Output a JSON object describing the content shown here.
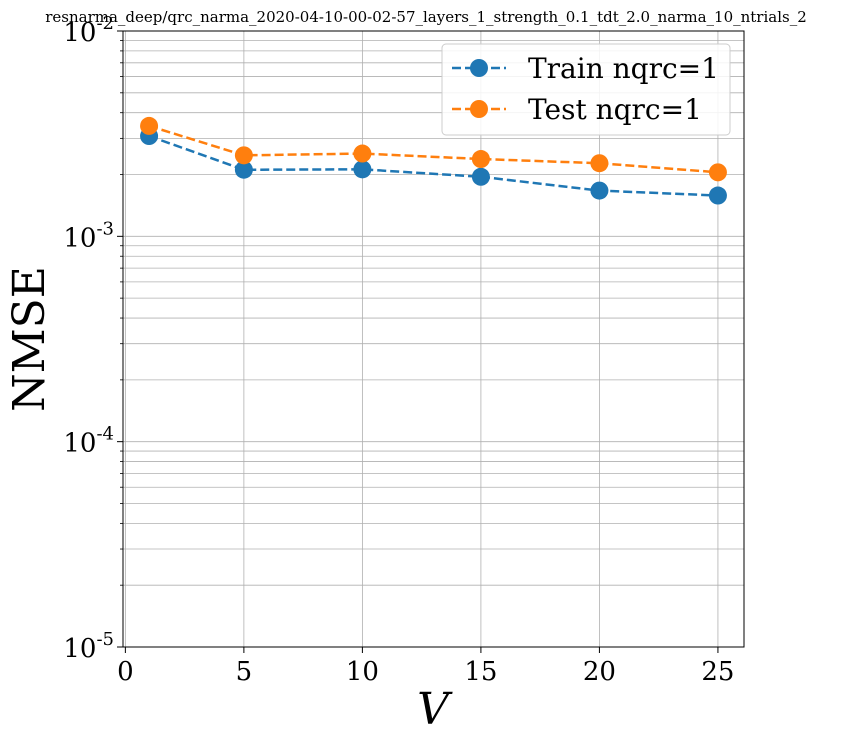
{
  "chart_data": {
    "type": "line",
    "title": "resnarma_deep/qrc_narma_2020-04-10-00-02-57_layers_1_strength_0.1_tdt_2.0_narma_10_ntrials_2",
    "xlabel": "V",
    "ylabel": "NMSE",
    "x": [
      1,
      5,
      10,
      15,
      20,
      25
    ],
    "xlim": [
      -0.1,
      26.1
    ],
    "ylim": [
      1e-05,
      0.01
    ],
    "yscale": "log",
    "xticks": [
      "0",
      "5",
      "10",
      "15",
      "20",
      "25"
    ],
    "yticks": [
      {
        "base": "10",
        "exp": "-5"
      },
      {
        "base": "10",
        "exp": "-4"
      },
      {
        "base": "10",
        "exp": "-3"
      },
      {
        "base": "10",
        "exp": "-2"
      }
    ],
    "grid": true,
    "legend_position": "top-right",
    "series": [
      {
        "name": "Train nqrc=1",
        "color": "#1f77b4",
        "style": "dashed",
        "marker": "circle",
        "values": [
          0.00308,
          0.00211,
          0.00212,
          0.00195,
          0.00167,
          0.00158
        ]
      },
      {
        "name": "Test nqrc=1",
        "color": "#ff7f0e",
        "style": "dashed",
        "marker": "circle",
        "values": [
          0.00345,
          0.00248,
          0.00253,
          0.00238,
          0.00227,
          0.00205
        ]
      }
    ]
  }
}
